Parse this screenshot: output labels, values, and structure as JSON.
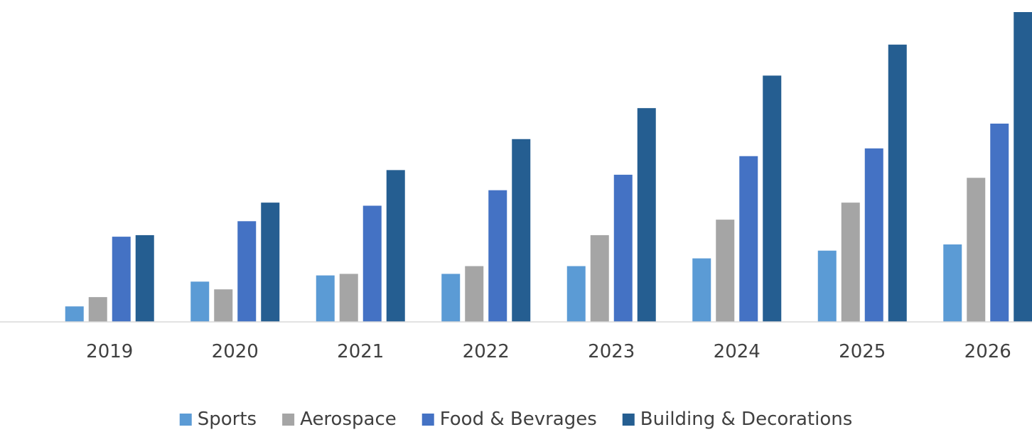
{
  "chart_data": {
    "type": "bar",
    "title": "",
    "xlabel": "",
    "ylabel": "",
    "categories": [
      "2019",
      "2020",
      "2021",
      "2022",
      "2023",
      "2024",
      "2025",
      "2026"
    ],
    "ylim": [
      0,
      100
    ],
    "grid": false,
    "legend_position": "bottom",
    "series": [
      {
        "name": "Sports",
        "color": "#5B9BD5",
        "values": [
          5,
          13,
          15,
          15.5,
          18,
          20.5,
          23,
          25
        ]
      },
      {
        "name": "Aerospace",
        "color": "#A5A5A5",
        "values": [
          8,
          10.5,
          15.5,
          18,
          28,
          33,
          38.5,
          46.5
        ]
      },
      {
        "name": "Food & Bevrages",
        "color": "#4472C4",
        "values": [
          27.5,
          32.5,
          37.5,
          42.5,
          47.5,
          53.5,
          56,
          64
        ]
      },
      {
        "name": "Building & Decorations",
        "color": "#255E91",
        "values": [
          28,
          38.5,
          49,
          59,
          69,
          79.5,
          89.5,
          100
        ]
      }
    ]
  }
}
